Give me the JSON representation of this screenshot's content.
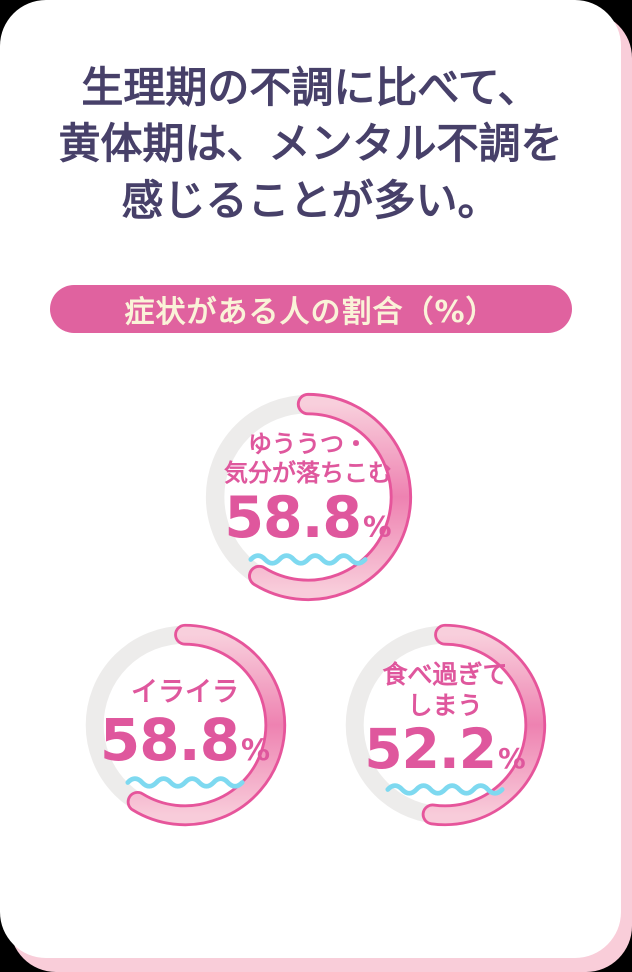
{
  "page": {
    "background_color": "#000000",
    "card_color": "#ffffff",
    "card_shadow_color": "#f9cdd9"
  },
  "header": {
    "title": "生理期の不調に比べて、\n黄体期は、メンタル不調を\n感じることが多い。",
    "text_color": "#474069"
  },
  "badge": {
    "label": "症状がある人の割合（%）",
    "background_color": "#e0629f",
    "text_color": "#faf3d8"
  },
  "chart_data": {
    "type": "donut-progress",
    "title": "症状がある人の割合（%）",
    "unit": "%",
    "ring_track_color": "#edeceb",
    "arc_outline_color": "#e6559b",
    "arc_gradient": [
      "#f8cfdc",
      "#ee82b1",
      "#f8ccda"
    ],
    "value_text_color": "#df579d",
    "wave_underline_color": "#7ed9f0",
    "arc_start_angle_deg": 0,
    "items": [
      {
        "label": "ゆううつ・気分が落ちこむ",
        "label_display": "ゆううつ・\n気分が落ちこむ",
        "value": 58.8,
        "value_display": "58.8",
        "unit": "%"
      },
      {
        "label": "イライラ",
        "label_display": "イライラ",
        "value": 58.8,
        "value_display": "58.8",
        "unit": "%"
      },
      {
        "label": "食べ過ぎてしまう",
        "label_display": "食べ過ぎて\nしまう",
        "value": 52.2,
        "value_display": "52.2",
        "unit": "%"
      }
    ]
  }
}
